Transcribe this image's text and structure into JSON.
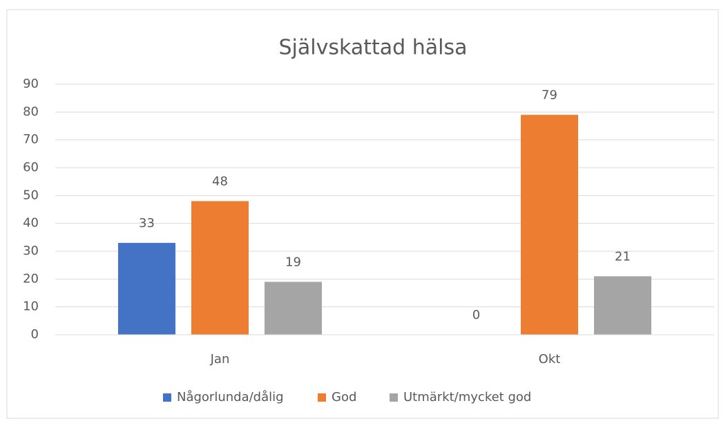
{
  "chart_data": {
    "type": "bar",
    "title": "Självskattad hälsa",
    "categories": [
      "Jan",
      "Okt"
    ],
    "series": [
      {
        "name": "Någorlunda/dålig",
        "color": "#4472c4",
        "values": [
          33,
          0
        ]
      },
      {
        "name": "God",
        "color": "#ed7d31",
        "values": [
          48,
          79
        ]
      },
      {
        "name": "Utmärkt/mycket god",
        "color": "#a5a5a5",
        "values": [
          19,
          21
        ]
      }
    ],
    "ylim": [
      0,
      90
    ],
    "yticks": [
      0,
      10,
      20,
      30,
      40,
      50,
      60,
      70,
      80,
      90
    ],
    "grid": true,
    "legend": "bottom"
  }
}
